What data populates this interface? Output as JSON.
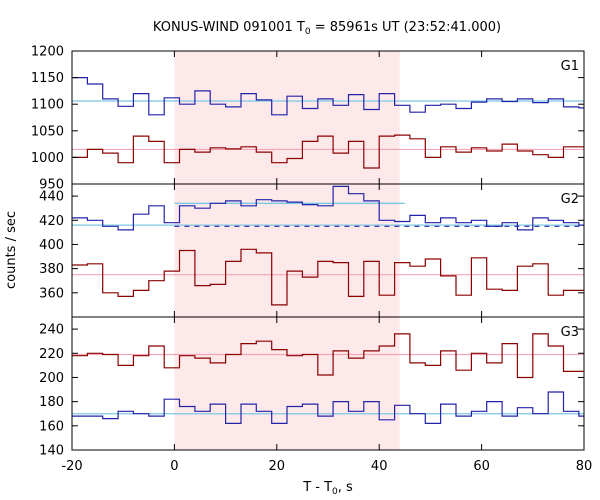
{
  "chart_data": {
    "type": "line",
    "title_main": "KONUS-WIND 091001 T",
    "title_sub": "0",
    "title_rest": " = 85961s UT (23:52:41.000)",
    "xlabel_main": "T - T",
    "xlabel_sub": "0",
    "xlabel_rest": ", s",
    "ylabel": "counts / sec",
    "xlim": [
      -20,
      80
    ],
    "xticks": [
      -20,
      0,
      20,
      40,
      60,
      80
    ],
    "highlight_interval": [
      0,
      44
    ],
    "colors": {
      "high_line": "#2222aa",
      "low_line": "#8b0000",
      "high_bg": "#7ec8e3",
      "low_bg": "#f4a6b8",
      "interval_fill": "#fde8ea"
    },
    "step_edges": [
      -20,
      -17,
      -14,
      -11,
      -8,
      -5,
      -2,
      1,
      4,
      7,
      10,
      13,
      16,
      19,
      22,
      25,
      28,
      31,
      34,
      37,
      40,
      43,
      46,
      49,
      52,
      55,
      58,
      61,
      64,
      67,
      70,
      73,
      76,
      79,
      80
    ],
    "panels": [
      {
        "label": "G1",
        "ylim": [
          950,
          1200
        ],
        "yticks": [
          950,
          1000,
          1050,
          1100,
          1150,
          1200
        ],
        "series": [
          {
            "name": "G1 upper",
            "role": "high",
            "values": [
              1150,
              1138,
              1110,
              1096,
              1120,
              1080,
              1112,
              1100,
              1125,
              1100,
              1095,
              1120,
              1108,
              1080,
              1115,
              1092,
              1110,
              1098,
              1118,
              1090,
              1120,
              1098,
              1085,
              1098,
              1100,
              1092,
              1104,
              1110,
              1105,
              1110,
              1103,
              1110,
              1095,
              1093
            ],
            "background": 1106
          },
          {
            "name": "G1 lower",
            "role": "low",
            "values": [
              1000,
              1015,
              1008,
              990,
              1040,
              1030,
              990,
              1015,
              1010,
              1018,
              1016,
              1020,
              1010,
              990,
              998,
              1030,
              1040,
              1008,
              1030,
              980,
              1040,
              1042,
              1035,
              1000,
              1020,
              1010,
              1018,
              1012,
              1025,
              1012,
              1005,
              1000,
              1020,
              1020
            ],
            "background": 1015
          }
        ]
      },
      {
        "label": "G2",
        "ylim": [
          340,
          450
        ],
        "yticks": [
          340,
          360,
          380,
          400,
          420,
          440
        ],
        "interval_fit": {
          "value": 434,
          "range": [
            0,
            45
          ],
          "dashed_value": 415,
          "dashed_range": [
            0,
            80
          ]
        },
        "series": [
          {
            "name": "G2 upper",
            "role": "high",
            "values": [
              422,
              420,
              415,
              412,
              425,
              432,
              418,
              432,
              430,
              434,
              436,
              432,
              437,
              436,
              435,
              433,
              432,
              448,
              442,
              436,
              420,
              419,
              424,
              418,
              422,
              418,
              420,
              415,
              418,
              412,
              422,
              420,
              418,
              416
            ],
            "background": 416
          },
          {
            "name": "G2 lower",
            "role": "low",
            "values": [
              383,
              384,
              360,
              357,
              362,
              370,
              378,
              395,
              366,
              367,
              386,
              396,
              393,
              350,
              378,
              373,
              386,
              385,
              357,
              386,
              358,
              385,
              382,
              388,
              374,
              358,
              389,
              363,
              362,
              382,
              384,
              358,
              362,
              362
            ],
            "background": 375
          }
        ]
      },
      {
        "label": "G3",
        "ylim": [
          140,
          250
        ],
        "yticks": [
          140,
          160,
          180,
          200,
          220,
          240
        ],
        "series": [
          {
            "name": "G3 upper",
            "role": "low",
            "values": [
              218,
              220,
              219,
              210,
              218,
              226,
              208,
              218,
              216,
              212,
              219,
              228,
              230,
              223,
              218,
              219,
              202,
              222,
              216,
              222,
              226,
              236,
              212,
              210,
              222,
              206,
              220,
              212,
              228,
              200,
              236,
              226,
              205,
              205
            ],
            "background": 219
          },
          {
            "name": "G3 lower",
            "role": "high",
            "values": [
              168,
              168,
              166,
              172,
              170,
              168,
              182,
              176,
              172,
              178,
              162,
              178,
              172,
              162,
              176,
              178,
              168,
              180,
              172,
              180,
              165,
              177,
              170,
              162,
              178,
              168,
              172,
              180,
              168,
              175,
              170,
              188,
              172,
              168
            ],
            "background": 170
          }
        ]
      }
    ]
  }
}
